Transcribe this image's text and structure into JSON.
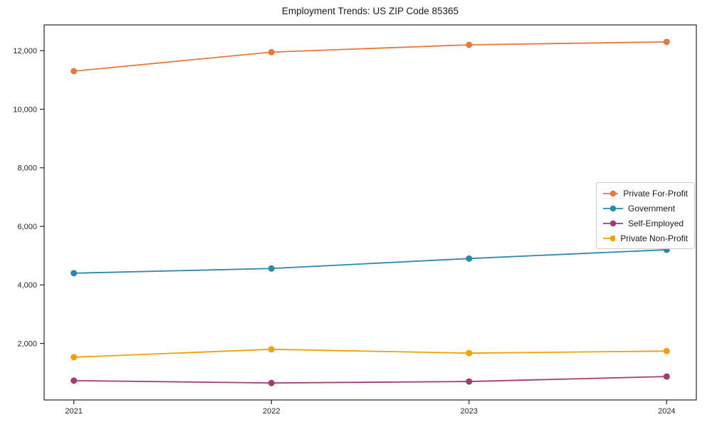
{
  "page": {
    "title": "Employment Trends: US ZIP Code 85365"
  },
  "chart_data": {
    "type": "line",
    "title": "Employment Trends: US ZIP Code 85365",
    "xlabel": "",
    "ylabel": "",
    "categories": [
      "2021",
      "2022",
      "2023",
      "2024"
    ],
    "series": [
      {
        "name": "Private For-Profit",
        "color": "#E8793E",
        "values": [
          11300,
          11950,
          12200,
          12300
        ]
      },
      {
        "name": "Government",
        "color": "#2E86AB",
        "values": [
          4400,
          4560,
          4900,
          5200
        ]
      },
      {
        "name": "Self-Employed",
        "color": "#A23B72",
        "values": [
          730,
          650,
          700,
          870
        ]
      },
      {
        "name": "Private Non-Profit",
        "color": "#F1A104",
        "values": [
          1530,
          1800,
          1670,
          1740
        ]
      }
    ],
    "ylim": [
      70,
      12880
    ],
    "yticks": [
      {
        "value": 2000,
        "label": "2,000"
      },
      {
        "value": 4000,
        "label": "4,000"
      },
      {
        "value": 6000,
        "label": "6,000"
      },
      {
        "value": 8000,
        "label": "8,000"
      },
      {
        "value": 10000,
        "label": "10,000"
      },
      {
        "value": 12000,
        "label": "12,000"
      }
    ],
    "grid": false,
    "legend_position": "center-right",
    "axis_color": "#262626",
    "background": "#ffffff"
  }
}
